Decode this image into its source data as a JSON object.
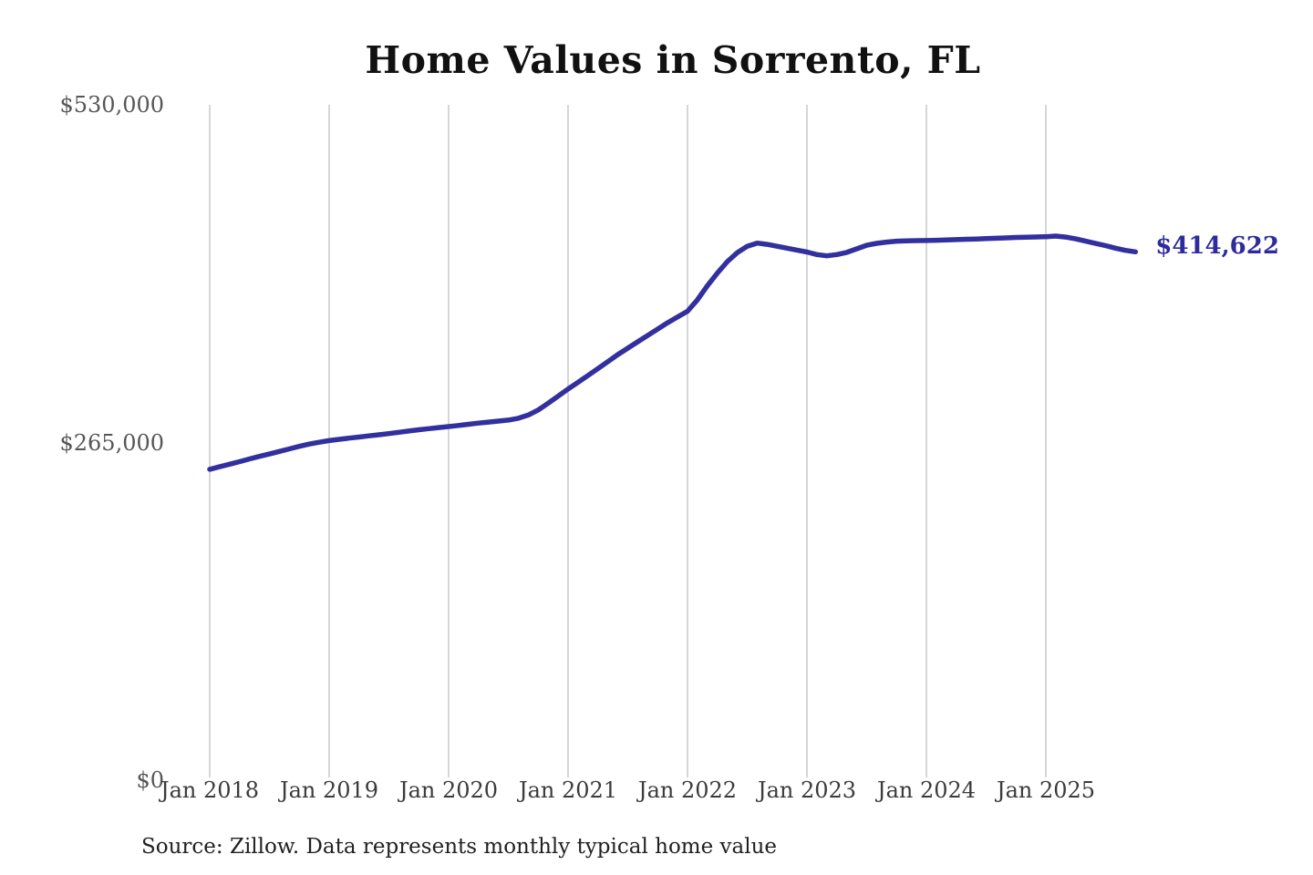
{
  "page": {
    "background_color": "#ffffff"
  },
  "chart_data": {
    "type": "line",
    "title": "Home Values in Sorrento, FL",
    "source_note": "Source: Zillow. Data represents monthly typical home value",
    "series_name": "Monthly typical home value",
    "unit": "USD",
    "line_color": "#32309e",
    "gridline_color": "#c9c9c9",
    "grid": "vertical-only",
    "legend_position": "none",
    "end_label": "$414,622",
    "end_value": 414622,
    "ylim": [
      0,
      530000
    ],
    "y_ticks": [
      {
        "label": "$0",
        "value": 0
      },
      {
        "label": "$265,000",
        "value": 265000
      },
      {
        "label": "$530,000",
        "value": 530000
      }
    ],
    "x_tick_labels": [
      "Jan 2018",
      "Jan 2019",
      "Jan 2020",
      "Jan 2021",
      "Jan 2022",
      "Jan 2023",
      "Jan 2024",
      "Jan 2025"
    ],
    "x_start_month": "2018-01",
    "x_frequency": "monthly",
    "values": [
      244000,
      246000,
      248000,
      250000,
      252100,
      254100,
      256000,
      258000,
      260000,
      262000,
      263800,
      265200,
      266500,
      267500,
      268400,
      269300,
      270200,
      271100,
      272000,
      273000,
      274000,
      275000,
      275900,
      276700,
      277500,
      278400,
      279300,
      280200,
      281000,
      281800,
      282600,
      284000,
      286500,
      290500,
      295800,
      301400,
      307000,
      312200,
      317600,
      323000,
      328500,
      334000,
      339000,
      344000,
      349000,
      354000,
      359000,
      363500,
      368000,
      377000,
      388000,
      398000,
      407000,
      414000,
      419000,
      421500,
      420500,
      419000,
      417500,
      416000,
      414500,
      412500,
      411500,
      412500,
      414200,
      417000,
      419800,
      421300,
      422300,
      423000,
      423200,
      423400,
      423500,
      423700,
      424000,
      424200,
      424500,
      424700,
      425000,
      425300,
      425600,
      425900,
      426100,
      426300,
      426500,
      427000,
      426200,
      424800,
      423000,
      421200,
      419500,
      417500,
      415800,
      414622
    ]
  }
}
